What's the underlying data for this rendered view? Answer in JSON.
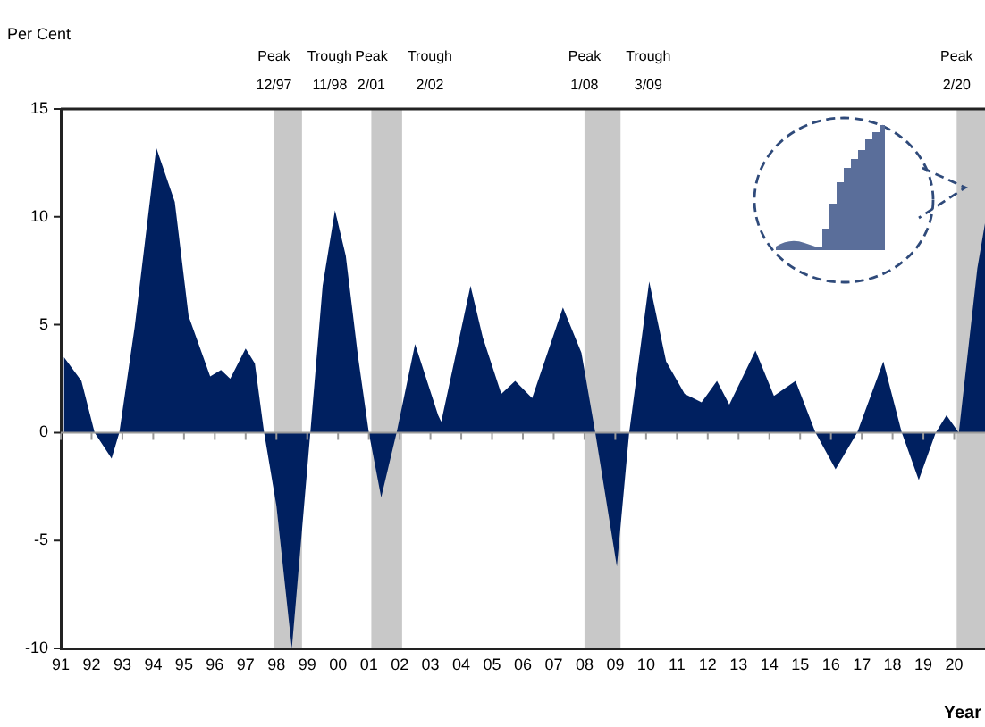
{
  "chart_data": {
    "type": "area",
    "ylabel": "Per Cent",
    "xlabel": "Year",
    "x": [
      1991.1,
      1991.67,
      1992.1,
      1992.65,
      1992.9,
      1993.4,
      1994.1,
      1994.7,
      1995.15,
      1995.85,
      1996.2,
      1996.5,
      1997.0,
      1997.3,
      1997.6,
      1998.0,
      1998.5,
      1998.8,
      1999.1,
      1999.5,
      1999.9,
      2000.25,
      2000.65,
      2001.0,
      2001.4,
      2001.9,
      2002.5,
      2003.25,
      2003.35,
      2004.3,
      2004.7,
      2005.3,
      2005.75,
      2006.3,
      2007.3,
      2007.9,
      2008.35,
      2009.05,
      2009.45,
      2010.1,
      2010.65,
      2011.25,
      2011.8,
      2012.3,
      2012.7,
      2013.55,
      2014.15,
      2014.85,
      2015.5,
      2016.15,
      2016.85,
      2017.7,
      2018.3,
      2018.85,
      2019.4,
      2019.75,
      2020.15,
      2020.75,
      2021.0
    ],
    "series": [
      {
        "color": "#002060",
        "values": [
          3.5,
          2.4,
          0,
          -1.2,
          0,
          4.9,
          13.2,
          10.7,
          5.4,
          2.6,
          2.9,
          2.5,
          3.9,
          3.2,
          0,
          -3.4,
          -10,
          -5,
          0,
          6.8,
          10.3,
          8.2,
          3.5,
          0,
          -3,
          0,
          4.1,
          0.8,
          0.5,
          6.8,
          4.4,
          1.8,
          2.4,
          1.6,
          5.8,
          3.7,
          0,
          -6.2,
          0,
          7,
          3.3,
          1.8,
          1.4,
          2.4,
          1.3,
          3.8,
          1.7,
          2.4,
          0,
          -1.7,
          0,
          3.3,
          0,
          -2.2,
          0,
          0.8,
          0,
          7.6,
          9.7
        ]
      }
    ],
    "xlim": [
      1991,
      2021
    ],
    "xticks": [
      {
        "value": 1991,
        "label": "91"
      },
      {
        "value": 1992,
        "label": "92"
      },
      {
        "value": 1993,
        "label": "93"
      },
      {
        "value": 1994,
        "label": "94"
      },
      {
        "value": 1995,
        "label": "95"
      },
      {
        "value": 1996,
        "label": "96"
      },
      {
        "value": 1997,
        "label": "97"
      },
      {
        "value": 1998,
        "label": "98"
      },
      {
        "value": 1999,
        "label": "99"
      },
      {
        "value": 2000,
        "label": "00"
      },
      {
        "value": 2001,
        "label": "01"
      },
      {
        "value": 2002,
        "label": "02"
      },
      {
        "value": 2003,
        "label": "03"
      },
      {
        "value": 2004,
        "label": "04"
      },
      {
        "value": 2005,
        "label": "05"
      },
      {
        "value": 2006,
        "label": "06"
      },
      {
        "value": 2007,
        "label": "07"
      },
      {
        "value": 2008,
        "label": "08"
      },
      {
        "value": 2009,
        "label": "09"
      },
      {
        "value": 2010,
        "label": "10"
      },
      {
        "value": 2011,
        "label": "11"
      },
      {
        "value": 2012,
        "label": "12"
      },
      {
        "value": 2013,
        "label": "13"
      },
      {
        "value": 2014,
        "label": "14"
      },
      {
        "value": 2015,
        "label": "15"
      },
      {
        "value": 2016,
        "label": "16"
      },
      {
        "value": 2017,
        "label": "17"
      },
      {
        "value": 2018,
        "label": "18"
      },
      {
        "value": 2019,
        "label": "19"
      },
      {
        "value": 2020,
        "label": "20"
      }
    ],
    "ylim": [
      -10,
      15
    ],
    "yticks": [
      -10,
      -5,
      0,
      5,
      10,
      15
    ],
    "ref_lines": [
      {
        "axis": "y",
        "value": 0,
        "color": "#999999"
      }
    ],
    "bands": [
      {
        "axis": "x",
        "from": 1997.92,
        "to": 1998.83,
        "color": "#c8c8c8"
      },
      {
        "axis": "x",
        "from": 2001.08,
        "to": 2002.08,
        "color": "#c8c8c8"
      },
      {
        "axis": "x",
        "from": 2008.0,
        "to": 2009.17,
        "color": "#c8c8c8"
      },
      {
        "axis": "x",
        "from": 2020.08,
        "to": 2021.0,
        "color": "#c8c8c8"
      }
    ],
    "annotations": [
      {
        "text": "Peak\n12/97",
        "x": 1997.92,
        "y": 15
      },
      {
        "text": "Trough\n11/98",
        "x": 1998.83,
        "y": 15
      },
      {
        "text": "Peak\n2/01",
        "x": 2001.08,
        "y": 15
      },
      {
        "text": "Trough\n2/02",
        "x": 2002.08,
        "y": 15
      },
      {
        "text": "Peak\n1/08",
        "x": 2008.0,
        "y": 15
      },
      {
        "text": "Trough\n3/09",
        "x": 2009.17,
        "y": 15
      },
      {
        "text": "Peak\n2/20",
        "x": 2020.08,
        "y": 15
      }
    ],
    "grid": false,
    "legend": false
  }
}
